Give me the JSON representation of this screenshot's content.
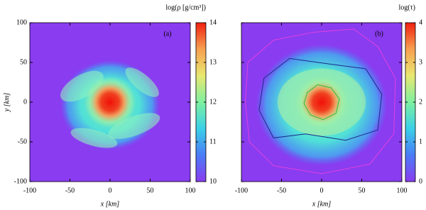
{
  "chart_data": [
    {
      "type": "heatmap",
      "xlabel": "x [km]",
      "ylabel": "y [km]",
      "annotation": "(a)",
      "colorbar_label": "log(ρ [g/cm³])",
      "xlim": [
        -100,
        100
      ],
      "ylim": [
        -100,
        100
      ],
      "xticks": [
        -100,
        -50,
        0,
        50,
        100
      ],
      "yticks": [
        -100,
        -50,
        0,
        50,
        100
      ],
      "clim": [
        10,
        14
      ],
      "cticks": [
        10,
        11,
        12,
        13,
        14
      ],
      "colormap": [
        "#8a3cf0",
        "#4a7cf6",
        "#3ad0e8",
        "#7ef0a0",
        "#e8e870",
        "#f8a050",
        "#f02010"
      ]
    },
    {
      "type": "heatmap",
      "xlabel": "x [km]",
      "annotation": "(b)",
      "colorbar_label": "log(τ)",
      "xlim": [
        -100,
        100
      ],
      "ylim": [
        -100,
        100
      ],
      "xticks": [
        -100,
        -50,
        0,
        50,
        100
      ],
      "clim": [
        0,
        4
      ],
      "cticks": [
        0,
        1,
        2,
        3,
        4
      ],
      "colormap": [
        "#8a3cf0",
        "#4a7cf6",
        "#3ad0e8",
        "#7ef0a0",
        "#e8e870",
        "#f8a050",
        "#f02010"
      ],
      "contour_colors": [
        "#e040e0",
        "#1a2a8a",
        "#30c030"
      ]
    }
  ]
}
